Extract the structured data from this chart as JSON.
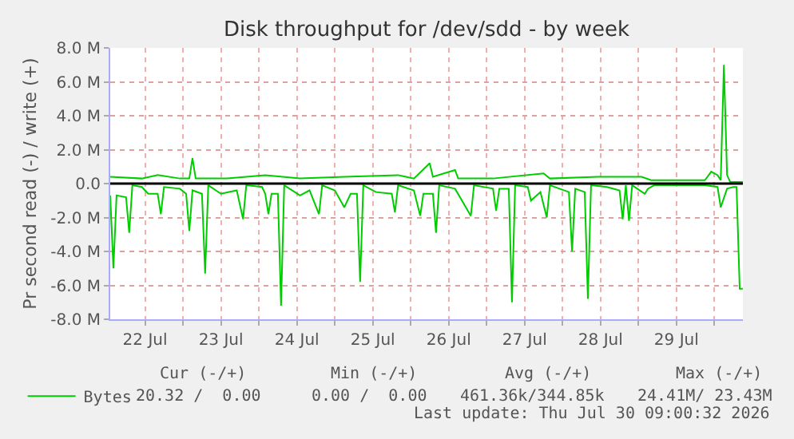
{
  "chart_data": {
    "type": "line",
    "title": "Disk throughput for /dev/sdd - by week",
    "ylabel": "Pr second read (-) / write (+)",
    "xlim": [
      "2026-07-22T01:00",
      "2026-07-30T09:00"
    ],
    "xticks": [
      {
        "value": "2026-07-22T12:00",
        "label": "22 Jul"
      },
      {
        "value": "2026-07-23T00:00",
        "label": null
      },
      {
        "value": "2026-07-23T12:00",
        "label": "23 Jul"
      },
      {
        "value": "2026-07-24T00:00",
        "label": null
      },
      {
        "value": "2026-07-24T12:00",
        "label": "24 Jul"
      },
      {
        "value": "2026-07-25T00:00",
        "label": null
      },
      {
        "value": "2026-07-25T12:00",
        "label": "25 Jul"
      },
      {
        "value": "2026-07-26T00:00",
        "label": null
      },
      {
        "value": "2026-07-26T12:00",
        "label": "26 Jul"
      },
      {
        "value": "2026-07-27T00:00",
        "label": null
      },
      {
        "value": "2026-07-27T12:00",
        "label": "27 Jul"
      },
      {
        "value": "2026-07-28T00:00",
        "label": null
      },
      {
        "value": "2026-07-28T12:00",
        "label": "28 Jul"
      },
      {
        "value": "2026-07-29T00:00",
        "label": null
      },
      {
        "value": "2026-07-29T12:00",
        "label": "29 Jul"
      },
      {
        "value": "2026-07-30T00:00",
        "label": null
      }
    ],
    "ylim": [
      -8,
      8
    ],
    "yticks": [
      {
        "value": -8,
        "label": "-8.0 M"
      },
      {
        "value": -6,
        "label": "-6.0 M"
      },
      {
        "value": -4,
        "label": "-4.0 M"
      },
      {
        "value": -2,
        "label": "-2.0 M"
      },
      {
        "value": 0,
        "label": "0.0"
      },
      {
        "value": 2,
        "label": "2.0 M"
      },
      {
        "value": 4,
        "label": "4.0 M"
      },
      {
        "value": 6,
        "label": "6.0 M"
      },
      {
        "value": 8,
        "label": "8.0 M"
      }
    ],
    "grid": true,
    "legend": "bottom left",
    "marker": "none",
    "line_style": "solid",
    "ref_lines": [
      {
        "axis": "y",
        "value": 0,
        "color": "#000000"
      }
    ],
    "series": [
      {
        "name": "Bytes",
        "color": "#00cc00",
        "x": [
          "2026-07-22T01:00",
          "2026-07-22T02:00",
          "2026-07-22T03:00",
          "2026-07-22T06:00",
          "2026-07-22T07:00",
          "2026-07-22T08:00",
          "2026-07-22T11:00",
          "2026-07-22T13:00",
          "2026-07-22T16:00",
          "2026-07-22T17:00",
          "2026-07-22T18:00",
          "2026-07-22T23:00",
          "2026-07-23T01:00",
          "2026-07-23T02:00",
          "2026-07-23T03:00",
          "2026-07-23T06:00",
          "2026-07-23T07:00",
          "2026-07-23T08:00",
          "2026-07-23T12:00",
          "2026-07-23T17:00",
          "2026-07-23T19:00",
          "2026-07-23T20:00",
          "2026-07-24T01:00",
          "2026-07-24T02:00",
          "2026-07-24T03:00",
          "2026-07-24T04:00",
          "2026-07-24T06:00",
          "2026-07-24T07:00",
          "2026-07-24T08:00",
          "2026-07-24T13:00",
          "2026-07-24T16:00",
          "2026-07-24T19:00",
          "2026-07-24T20:00",
          "2026-07-25T00:00",
          "2026-07-25T03:00",
          "2026-07-25T05:00",
          "2026-07-25T07:00",
          "2026-07-25T08:00",
          "2026-07-25T09:00",
          "2026-07-25T13:00",
          "2026-07-25T18:00",
          "2026-07-25T19:00",
          "2026-07-25T20:00",
          "2026-07-26T01:00",
          "2026-07-26T03:00",
          "2026-07-26T04:00",
          "2026-07-26T07:00",
          "2026-07-26T08:00",
          "2026-07-26T09:00",
          "2026-07-26T14:00",
          "2026-07-26T19:00",
          "2026-07-26T20:00",
          "2026-07-27T02:00",
          "2026-07-27T03:00",
          "2026-07-27T04:00",
          "2026-07-27T07:00",
          "2026-07-27T08:00",
          "2026-07-27T09:00",
          "2026-07-27T13:00",
          "2026-07-27T14:00",
          "2026-07-27T17:00",
          "2026-07-27T19:00",
          "2026-07-27T20:00",
          "2026-07-28T02:00",
          "2026-07-28T03:00",
          "2026-07-28T04:00",
          "2026-07-28T07:00",
          "2026-07-28T08:00",
          "2026-07-28T09:00",
          "2026-07-28T14:00",
          "2026-07-28T18:00",
          "2026-07-28T19:00",
          "2026-07-28T20:00",
          "2026-07-28T21:00",
          "2026-07-28T22:00",
          "2026-07-29T02:00",
          "2026-07-29T03:00",
          "2026-07-29T05:00",
          "2026-07-29T21:00",
          "2026-07-30T01:00",
          "2026-07-30T02:00",
          "2026-07-30T04:00",
          "2026-07-30T06:00",
          "2026-07-30T07:00",
          "2026-07-30T08:00",
          "2026-07-30T09:00"
        ],
        "values": [
          -0.7,
          -5.0,
          -0.7,
          -0.8,
          -2.9,
          -0.1,
          -0.2,
          -0.6,
          -0.6,
          -1.8,
          -0.2,
          -0.3,
          -0.6,
          -2.8,
          -0.4,
          -0.6,
          -5.3,
          -0.1,
          -0.6,
          -0.4,
          -2.1,
          -0.1,
          -0.2,
          -0.6,
          -1.8,
          -0.6,
          -0.6,
          -7.2,
          -0.1,
          -0.7,
          -0.4,
          -1.8,
          -0.1,
          -0.4,
          -1.4,
          -0.6,
          -0.6,
          -5.8,
          -0.1,
          -0.5,
          -0.6,
          -1.7,
          -0.1,
          -0.4,
          -1.9,
          -0.6,
          -0.6,
          -2.9,
          -0.1,
          -0.3,
          -1.9,
          -0.1,
          -0.3,
          -1.6,
          -0.3,
          -0.3,
          -7.0,
          -0.1,
          -0.2,
          -1.0,
          -0.5,
          -2.0,
          -0.1,
          -0.5,
          -4.0,
          -0.3,
          -0.5,
          -6.8,
          -0.1,
          -0.2,
          -0.4,
          -2.1,
          -0.1,
          -2.2,
          -0.1,
          -0.6,
          -0.3,
          -0.1,
          -0.1,
          -0.2,
          -1.4,
          -0.3,
          -0.2,
          -0.2,
          -6.2,
          -6.2
        ]
      },
      {
        "color": "#00cc00",
        "x": [
          "2026-07-22T01:00",
          "2026-07-22T11:00",
          "2026-07-22T16:00",
          "2026-07-22T23:00",
          "2026-07-23T02:00",
          "2026-07-23T03:00",
          "2026-07-23T04:00",
          "2026-07-23T14:00",
          "2026-07-24T02:00",
          "2026-07-24T13:00",
          "2026-07-25T03:00",
          "2026-07-25T20:00",
          "2026-07-26T01:00",
          "2026-07-26T06:00",
          "2026-07-26T07:00",
          "2026-07-26T14:00",
          "2026-07-26T15:00",
          "2026-07-27T02:00",
          "2026-07-27T18:00",
          "2026-07-27T20:00",
          "2026-07-28T11:00",
          "2026-07-29T01:00",
          "2026-07-29T04:00",
          "2026-07-29T21:00",
          "2026-07-29T23:00",
          "2026-07-30T01:00",
          "2026-07-30T02:00",
          "2026-07-30T03:00",
          "2026-07-30T04:00",
          "2026-07-30T05:00",
          "2026-07-30T09:00"
        ],
        "values": [
          0.4,
          0.3,
          0.5,
          0.3,
          0.3,
          1.5,
          0.3,
          0.3,
          0.5,
          0.3,
          0.4,
          0.5,
          0.3,
          1.2,
          0.4,
          0.8,
          0.3,
          0.3,
          0.6,
          0.3,
          0.4,
          0.4,
          0.2,
          0.2,
          0.7,
          0.5,
          0.2,
          7.0,
          0.5,
          0.1,
          0.1
        ]
      }
    ],
    "annotations": [
      "Cur (-/+)",
      "Min (-/+)",
      "Avg (-/+)",
      "Max (-/+)",
      "20.32 /  0.00",
      "0.00 /  0.00",
      "461.36k/344.85k",
      "24.41M/ 23.43M",
      "Last update: Thu Jul 30 09:00:32 2026"
    ]
  }
}
